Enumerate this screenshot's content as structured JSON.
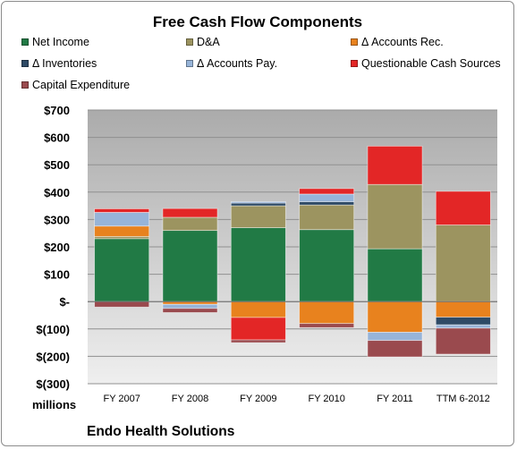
{
  "chart_data": {
    "type": "bar",
    "stacked": true,
    "title": "Free Cash Flow Components",
    "categories": [
      "FY 2007",
      "FY 2008",
      "FY 2009",
      "FY 2010",
      "FY 2011",
      "TTM 6-2012"
    ],
    "ylim": [
      -300,
      700
    ],
    "yticks": [
      -300,
      -200,
      -100,
      0,
      100,
      200,
      300,
      400,
      500,
      600,
      700
    ],
    "ytick_labels": [
      "$(300)",
      "$(200)",
      "$(100)",
      "$-",
      "$100",
      "$200",
      "$300",
      "$400",
      "$500",
      "$600",
      "$700"
    ],
    "units_label": "millions",
    "grid": true,
    "legend_position": "top",
    "series": [
      {
        "name": "Net Income",
        "color": "#217a45",
        "values": [
          230,
          260,
          270,
          263,
          193,
          0
        ]
      },
      {
        "name": "D&A",
        "color": "#9c9460",
        "values": [
          8,
          48,
          80,
          90,
          235,
          280
        ]
      },
      {
        "name": "Δ Accounts Rec.",
        "color": "#e8821e",
        "values": [
          38,
          -10,
          -58,
          -80,
          -112,
          -57
        ]
      },
      {
        "name": "Δ Inventories",
        "color": "#2e4a66",
        "values": [
          0,
          0,
          10,
          12,
          0,
          -28
        ]
      },
      {
        "name": "Δ Accounts Pay.",
        "color": "#97b4d8",
        "values": [
          50,
          -15,
          5,
          28,
          -30,
          -12
        ]
      },
      {
        "name": "Questionable Cash Sources",
        "color": "#e32626",
        "values": [
          13,
          32,
          -82,
          20,
          140,
          123
        ]
      },
      {
        "name": "Capital Expenditure",
        "color": "#9a4a4e",
        "values": [
          -20,
          -15,
          -10,
          -15,
          -60,
          -95
        ]
      }
    ]
  },
  "footer": {
    "company": "Endo Health Solutions"
  }
}
